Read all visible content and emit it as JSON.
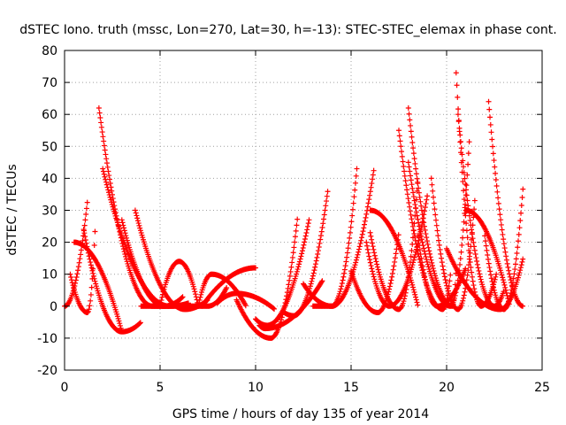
{
  "chart_data": {
    "type": "scatter",
    "title": "dSTEC Iono. truth (mssc, Lon=270, Lat=30, h=-13): STEC-STEC_elemax in phase cont.",
    "xlabel": "GPS time / hours of day 135 of year 2014",
    "ylabel": "dSTEC  / TECUs",
    "xlim": [
      0,
      25
    ],
    "ylim": [
      -20,
      80
    ],
    "xticks": [
      0,
      5,
      10,
      15,
      20,
      25
    ],
    "yticks": [
      -20,
      -10,
      0,
      10,
      20,
      30,
      40,
      50,
      60,
      70,
      80
    ],
    "grid": true,
    "marker": "+",
    "series_color": "#ff0000",
    "arcs": [
      {
        "t0": 0.0,
        "t1": 1.2,
        "tmin": 0.0,
        "ymin": 0,
        "ystart": 4,
        "yend": 33
      },
      {
        "t0": 0.3,
        "t1": 1.6,
        "tmin": 1.2,
        "ymin": -2,
        "ystart": 10,
        "yend": 24
      },
      {
        "t0": 0.5,
        "t1": 3.0,
        "tmin": 0.5,
        "ymin": 20,
        "ystart": 22,
        "yend": -8
      },
      {
        "t0": 1.0,
        "t1": 4.0,
        "tmin": 3.0,
        "ymin": -8,
        "ystart": 24,
        "yend": -5
      },
      {
        "t0": 1.8,
        "t1": 5.5,
        "tmin": 4.6,
        "ymin": 0,
        "ystart": 62,
        "yend": 0
      },
      {
        "t0": 2.0,
        "t1": 6.5,
        "tmin": 5.5,
        "ymin": 0,
        "ystart": 43,
        "yend": 1
      },
      {
        "t0": 3.0,
        "t1": 6.2,
        "tmin": 5.2,
        "ymin": 0,
        "ystart": 27,
        "yend": 3
      },
      {
        "t0": 3.7,
        "t1": 7.5,
        "tmin": 6.3,
        "ymin": -1,
        "ystart": 30,
        "yend": 2
      },
      {
        "t0": 5.0,
        "t1": 7.0,
        "tmin": 6.0,
        "ymin": 14,
        "ystart": 0,
        "yend": 0
      },
      {
        "t0": 4.0,
        "t1": 8.5,
        "tmin": 7.5,
        "ymin": 0,
        "ystart": 0,
        "yend": 6
      },
      {
        "t0": 7.0,
        "t1": 9.5,
        "tmin": 7.7,
        "ymin": 10,
        "ystart": 0,
        "yend": 0
      },
      {
        "t0": 7.2,
        "t1": 10.0,
        "tmin": 10.0,
        "ymin": 12,
        "ystart": 0,
        "yend": 12
      },
      {
        "t0": 8.0,
        "t1": 11.0,
        "tmin": 9.0,
        "ymin": 4,
        "ystart": 1,
        "yend": -1
      },
      {
        "t0": 9.0,
        "t1": 12.2,
        "tmin": 10.8,
        "ymin": -10,
        "ystart": 2,
        "yend": 28
      },
      {
        "t0": 10.0,
        "t1": 12.8,
        "tmin": 10.6,
        "ymin": -6,
        "ystart": -4,
        "yend": 27
      },
      {
        "t0": 10.2,
        "t1": 13.5,
        "tmin": 10.5,
        "ymin": -7,
        "ystart": -6,
        "yend": 8
      },
      {
        "t0": 12.5,
        "t1": 15.3,
        "tmin": 14.0,
        "ymin": 0,
        "ystart": 7,
        "yend": 43
      },
      {
        "t0": 11.5,
        "t1": 13.8,
        "tmin": 12.0,
        "ymin": -3,
        "ystart": -2,
        "yend": 37
      },
      {
        "t0": 13.0,
        "t1": 16.2,
        "tmin": 14.0,
        "ymin": 0,
        "ystart": 0,
        "yend": 43
      },
      {
        "t0": 15.0,
        "t1": 17.5,
        "tmin": 16.4,
        "ymin": -2,
        "ystart": 11,
        "yend": 23
      },
      {
        "t0": 16.0,
        "t1": 18.5,
        "tmin": 17.5,
        "ymin": -1,
        "ystart": 23,
        "yend": 40
      },
      {
        "t0": 17.5,
        "t1": 20.2,
        "tmin": 19.8,
        "ymin": -1,
        "ystart": 55,
        "yend": 10
      },
      {
        "t0": 18.0,
        "t1": 20.5,
        "tmin": 20.3,
        "ymin": 0,
        "ystart": 62,
        "yend": 12
      },
      {
        "t0": 16.0,
        "t1": 18.5,
        "tmin": 16.0,
        "ymin": 30,
        "ystart": 30,
        "yend": 0
      },
      {
        "t0": 18.0,
        "t1": 21.2,
        "tmin": 20.2,
        "ymin": 0,
        "ystart": 45,
        "yend": 53
      },
      {
        "t0": 19.2,
        "t1": 21.5,
        "tmin": 20.6,
        "ymin": -1,
        "ystart": 40,
        "yend": 35
      },
      {
        "t0": 20.5,
        "t1": 22.6,
        "tmin": 21.8,
        "ymin": 0,
        "ystart": 73,
        "yend": 10
      },
      {
        "t0": 20.6,
        "t1": 23.0,
        "tmin": 22.5,
        "ymin": 0,
        "ystart": 60,
        "yend": 5
      },
      {
        "t0": 21.0,
        "t1": 23.3,
        "tmin": 21.0,
        "ymin": 30,
        "ystart": 30,
        "yend": 0
      },
      {
        "t0": 22.2,
        "t1": 24.0,
        "tmin": 24.0,
        "ymin": 0,
        "ystart": 64,
        "yend": 0
      },
      {
        "t0": 22.0,
        "t1": 24.0,
        "tmin": 23.0,
        "ymin": -1,
        "ystart": 22,
        "yend": 37
      },
      {
        "t0": 20.0,
        "t1": 24.0,
        "tmin": 22.8,
        "ymin": -1,
        "ystart": 18,
        "yend": 15
      },
      {
        "t0": 18.5,
        "t1": 21.0,
        "tmin": 19.5,
        "ymin": 0,
        "ystart": 22,
        "yend": 12
      },
      {
        "t0": 15.8,
        "t1": 19.0,
        "tmin": 17.0,
        "ymin": 0,
        "ystart": 20,
        "yend": 35
      }
    ]
  }
}
